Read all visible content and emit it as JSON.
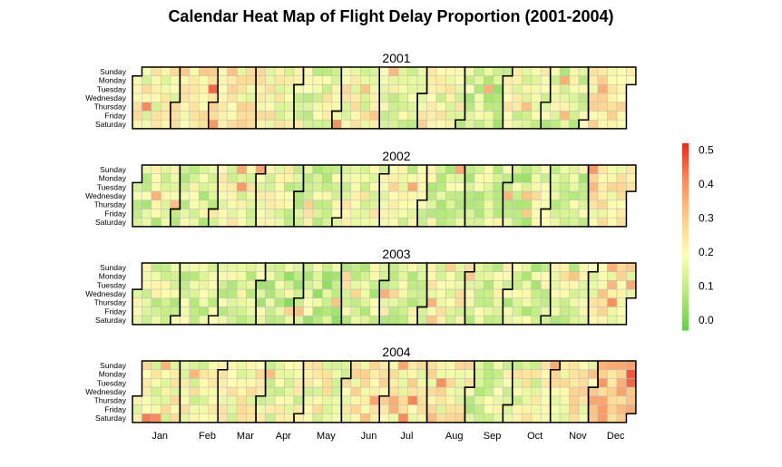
{
  "chart_data": {
    "type": "heatmap",
    "title": "Calendar Heat Map of Flight Delay Proportion (2001-2004)",
    "years": [
      "2001",
      "2002",
      "2003",
      "2004"
    ],
    "weekday_labels": [
      "Sunday",
      "Monday",
      "Tuesday",
      "Wednesday",
      "Thursday",
      "Friday",
      "Saturday"
    ],
    "month_labels": [
      "Jan",
      "Feb",
      "Mar",
      "Apr",
      "May",
      "Jun",
      "Jul",
      "Aug",
      "Sep",
      "Oct",
      "Nov",
      "Dec"
    ],
    "legend": {
      "ticks": [
        "0.0",
        "0.1",
        "0.2",
        "0.3",
        "0.4",
        "0.5"
      ],
      "range": [
        -0.03,
        0.52
      ],
      "colors": [
        "#62D04A",
        "#B7EA7C",
        "#FEFEB2",
        "#FDCD8C",
        "#FB8C5C",
        "#F02617"
      ]
    },
    "monthly_level": {
      "2001": [
        0.2,
        0.24,
        0.22,
        0.19,
        0.15,
        0.19,
        0.17,
        0.17,
        0.12,
        0.17,
        0.14,
        0.22
      ],
      "2002": [
        0.14,
        0.14,
        0.18,
        0.16,
        0.14,
        0.18,
        0.15,
        0.14,
        0.11,
        0.12,
        0.13,
        0.21
      ],
      "2003": [
        0.14,
        0.14,
        0.15,
        0.1,
        0.11,
        0.13,
        0.15,
        0.19,
        0.14,
        0.13,
        0.15,
        0.21
      ],
      "2004": [
        0.2,
        0.19,
        0.19,
        0.17,
        0.19,
        0.23,
        0.22,
        0.21,
        0.14,
        0.18,
        0.22,
        0.31
      ]
    }
  }
}
